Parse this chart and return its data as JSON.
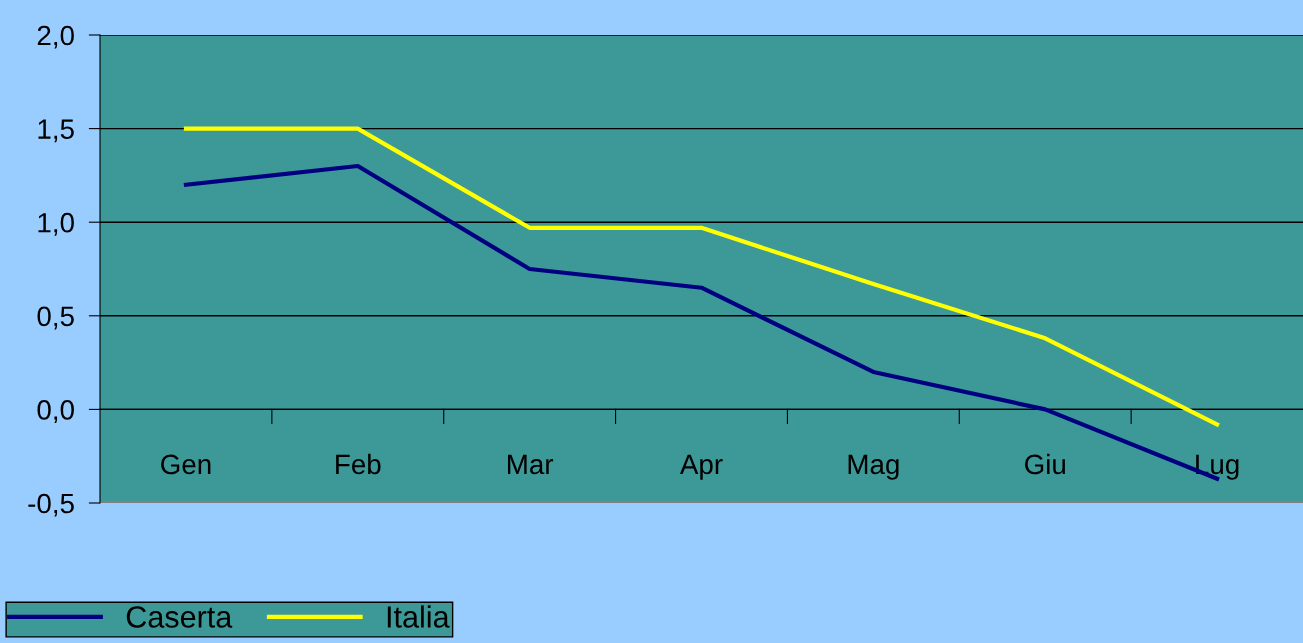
{
  "chart_data": {
    "type": "line",
    "categories": [
      "Gen",
      "Feb",
      "Mar",
      "Apr",
      "Mag",
      "Giu",
      "Lug"
    ],
    "series": [
      {
        "name": "Caserta",
        "color": "#000080",
        "values": [
          1.2,
          1.3,
          0.75,
          0.65,
          0.2,
          0.0,
          -0.37
        ]
      },
      {
        "name": "Italia",
        "color": "#ffff00",
        "values": [
          1.5,
          1.5,
          0.97,
          0.97,
          0.67,
          0.38,
          -0.08
        ]
      }
    ],
    "ylim": [
      -0.5,
      2.0
    ],
    "yticks": [
      {
        "value": -0.5,
        "label": "-0,5"
      },
      {
        "value": 0,
        "label": "0,0"
      },
      {
        "value": 0.5,
        "label": "0,5"
      },
      {
        "value": 1.0,
        "label": "1,0"
      },
      {
        "value": 1.5,
        "label": "1,5"
      },
      {
        "value": 2.0,
        "label": "2,0"
      }
    ],
    "grid": "y",
    "legend": "bottom left",
    "marker": "none",
    "line_style": "solid"
  }
}
